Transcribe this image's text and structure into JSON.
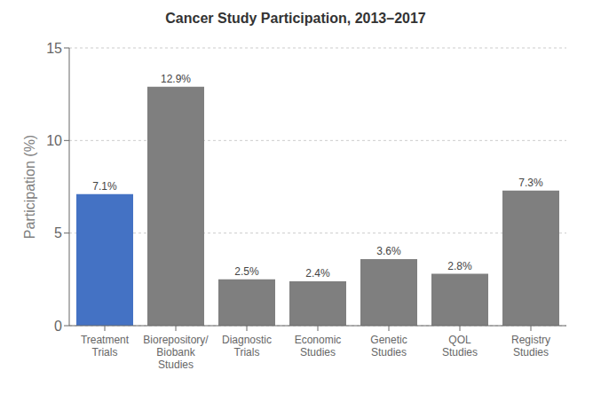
{
  "chart_data": {
    "type": "bar",
    "title": "Cancer Study Participation, 2013–2017",
    "categories": [
      "Treatment\nTrials",
      "Biorepository/\nBiobank\nStudies",
      "Diagnostic\nTrials",
      "Economic\nStudies",
      "Genetic\nStudies",
      "QOL\nStudies",
      "Registry\nStudies"
    ],
    "values": [
      7.1,
      12.9,
      2.5,
      2.4,
      3.6,
      2.8,
      7.3
    ],
    "value_labels": [
      "7.1%",
      "12.9%",
      "2.5%",
      "2.4%",
      "3.6%",
      "2.8%",
      "7.3%"
    ],
    "data_labels": true,
    "colors": [
      "#4472C4",
      "#7F7F7F",
      "#7F7F7F",
      "#7F7F7F",
      "#7F7F7F",
      "#7F7F7F",
      "#7F7F7F"
    ],
    "ylabel": "Participation (%)",
    "ylim": [
      0,
      15
    ],
    "yticks": [
      0,
      5,
      10,
      15
    ],
    "grid": true
  }
}
